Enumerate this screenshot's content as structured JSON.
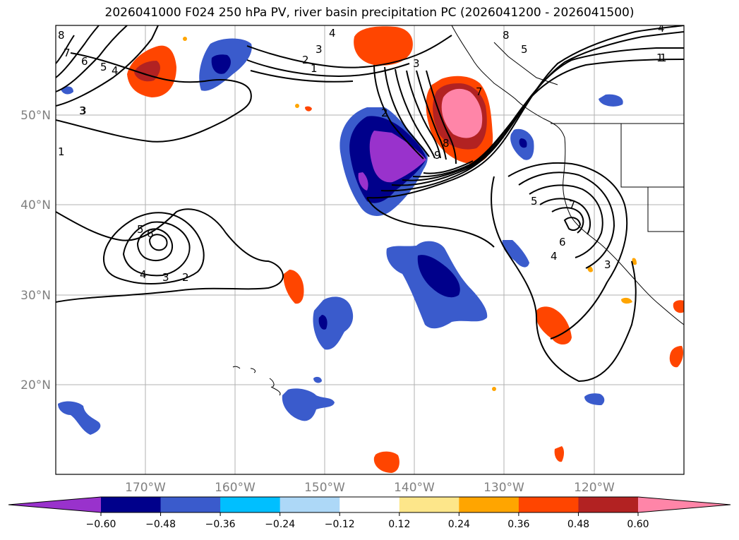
{
  "title": "2026041000 F024 250 hPa PV, river basin precipitation PC (2026041200 - 2026041500)",
  "map": {
    "lon_range": [
      -180,
      -110
    ],
    "lat_range": [
      10,
      60
    ],
    "lat_tick_labels": [
      "20°N",
      "30°N",
      "40°N",
      "50°N"
    ],
    "lon_tick_labels": [
      "170°W",
      "160°W",
      "150°W",
      "140°W",
      "130°W",
      "120°W"
    ],
    "gridlines": true
  },
  "colorbar": {
    "tick_labels": [
      "−0.60",
      "−0.48",
      "−0.36",
      "−0.24",
      "−0.12",
      "0.12",
      "0.24",
      "0.36",
      "0.48",
      "0.60"
    ],
    "colors": [
      "#9932cc",
      "#00008b",
      "#3a5bcc",
      "#00bfff",
      "#add8f7",
      "#ffffff",
      "#fde68a",
      "#ffa500",
      "#ff4500",
      "#b22222",
      "#ff85a8"
    ],
    "extend": "both"
  },
  "contour_labels": [
    "8",
    "7",
    "6",
    "5",
    "4",
    "3",
    "2",
    "1",
    "4",
    "3",
    "2",
    "1",
    "3",
    "9",
    "8",
    "7",
    "8",
    "5",
    "4",
    "1",
    "5",
    "6",
    "3",
    "4",
    "3",
    "2",
    "5",
    "7",
    "6",
    "4",
    "3",
    "1"
  ]
}
